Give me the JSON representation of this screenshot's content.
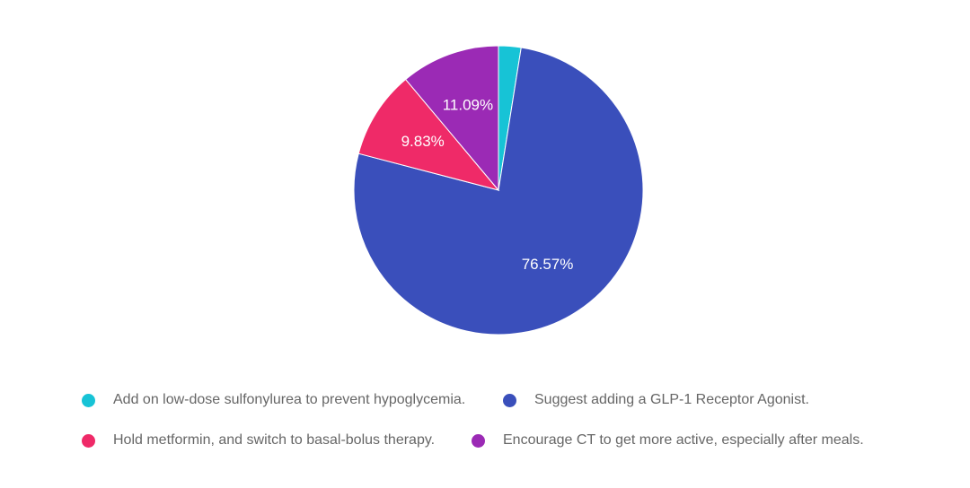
{
  "chart_data": {
    "type": "pie",
    "title": "",
    "legend_position": "bottom",
    "slices": [
      {
        "name": "Add on low-dose sulfonylurea to prevent hypoglycemia.",
        "value": 2.51,
        "label": "",
        "color": "#17c3d6"
      },
      {
        "name": "Suggest adding a GLP-1 Receptor Agonist.",
        "value": 76.57,
        "label": "76.57%",
        "color": "#3a4fbb"
      },
      {
        "name": "Hold metformin, and switch to basal-bolus therapy.",
        "value": 9.83,
        "label": "9.83%",
        "color": "#ef2a68"
      },
      {
        "name": "Encourage CT to get more active, especially after meals.",
        "value": 11.09,
        "label": "11.09%",
        "color": "#9b2ab5"
      }
    ]
  }
}
